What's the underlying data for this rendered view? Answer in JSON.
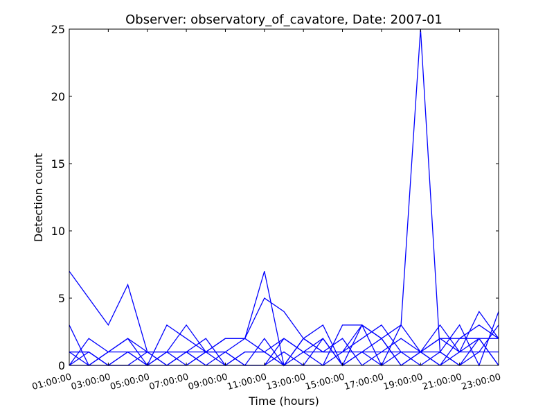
{
  "chart_data": {
    "type": "line",
    "title": "Observer: observatory_of_cavatore, Date: 2007-01",
    "xlabel": "Time (hours)",
    "ylabel": "Detection count",
    "xlim": [
      1,
      23
    ],
    "ylim": [
      0,
      25
    ],
    "x_ticks": [
      1,
      3,
      5,
      7,
      9,
      11,
      13,
      15,
      17,
      19,
      21,
      23
    ],
    "x_tick_labels": [
      "01:00:00",
      "03:00:00",
      "05:00:00",
      "07:00:00",
      "09:00:00",
      "11:00:00",
      "13:00:00",
      "15:00:00",
      "17:00:00",
      "19:00:00",
      "21:00:00",
      "23:00:00"
    ],
    "y_ticks": [
      0,
      5,
      10,
      15,
      20,
      25
    ],
    "y_tick_labels": [
      "0",
      "5",
      "10",
      "15",
      "20",
      "25"
    ],
    "grid": false,
    "line_color": "#0000ff",
    "series": [
      {
        "x": [
          1,
          3,
          4,
          5,
          6,
          7,
          8,
          9,
          10,
          11,
          12,
          13,
          14,
          15,
          16,
          17,
          18,
          19,
          20,
          21,
          22,
          23
        ],
        "y": [
          7,
          3,
          6,
          1,
          1,
          1,
          1,
          2,
          2,
          7,
          0,
          2,
          1,
          1,
          3,
          0,
          3,
          25,
          1,
          3,
          0,
          4
        ]
      },
      {
        "x": [
          1,
          2,
          3,
          4,
          5,
          6,
          7,
          8,
          9,
          10,
          11,
          12,
          13,
          14,
          15,
          16,
          17,
          18,
          19,
          20,
          21,
          22,
          23
        ],
        "y": [
          3,
          0,
          1,
          2,
          0,
          3,
          2,
          1,
          1,
          2,
          5,
          4,
          2,
          3,
          0,
          3,
          2,
          3,
          1,
          3,
          1,
          2,
          0
        ]
      },
      {
        "x": [
          1,
          2,
          3,
          4,
          5,
          6,
          7,
          8,
          9,
          10,
          11,
          12,
          13,
          14,
          15,
          16,
          17,
          18,
          19,
          20,
          21,
          22,
          23
        ],
        "y": [
          1,
          1,
          0,
          1,
          0,
          1,
          3,
          1,
          2,
          2,
          1,
          2,
          1,
          0,
          3,
          3,
          2,
          0,
          1,
          2,
          2,
          3,
          2
        ]
      },
      {
        "x": [
          1,
          2,
          3,
          4,
          5,
          6,
          7,
          8,
          9,
          10,
          11,
          12,
          13,
          14,
          15,
          16,
          17,
          18,
          19,
          20,
          21,
          22,
          23
        ],
        "y": [
          0,
          2,
          1,
          2,
          1,
          1,
          1,
          2,
          0,
          1,
          1,
          0,
          2,
          1,
          1,
          2,
          3,
          1,
          1,
          0,
          2,
          2,
          2
        ]
      },
      {
        "x": [
          1,
          2,
          3,
          4,
          5,
          6,
          7,
          8,
          9,
          10,
          11,
          12,
          13,
          14,
          15,
          16,
          17,
          18,
          19,
          20,
          21,
          22,
          23
        ],
        "y": [
          1,
          0,
          1,
          1,
          0,
          1,
          0,
          1,
          1,
          0,
          0,
          2,
          1,
          2,
          0,
          1,
          1,
          2,
          1,
          2,
          1,
          4,
          2
        ]
      },
      {
        "x": [
          1,
          2,
          3,
          4,
          5,
          6,
          7,
          8,
          9,
          10,
          11,
          12,
          13,
          14,
          15,
          16,
          17,
          18,
          19,
          20,
          21,
          22,
          23
        ],
        "y": [
          0,
          1,
          0,
          0,
          1,
          0,
          1,
          0,
          0,
          1,
          1,
          0,
          1,
          1,
          2,
          0,
          1,
          1,
          0,
          1,
          0,
          1,
          1
        ]
      },
      {
        "x": [
          1,
          2,
          3,
          4,
          5,
          6,
          7,
          8,
          9,
          10,
          11,
          12,
          13,
          14,
          15,
          16,
          17,
          18,
          19,
          20,
          21,
          22,
          23
        ],
        "y": [
          1,
          1,
          0,
          1,
          1,
          0,
          0,
          1,
          0,
          0,
          2,
          0,
          0,
          0,
          1,
          1,
          0,
          1,
          1,
          0,
          1,
          1,
          3
        ]
      },
      {
        "x": [
          1,
          2,
          3,
          4,
          5,
          6,
          7,
          8,
          9,
          10,
          11,
          12,
          13,
          14,
          15,
          16,
          17,
          18,
          19,
          20,
          21,
          22,
          23
        ],
        "y": [
          0,
          0,
          0,
          0,
          0,
          0,
          1,
          0,
          1,
          0,
          0,
          1,
          0,
          2,
          0,
          1,
          2,
          0,
          1,
          1,
          0,
          2,
          0
        ]
      }
    ]
  }
}
